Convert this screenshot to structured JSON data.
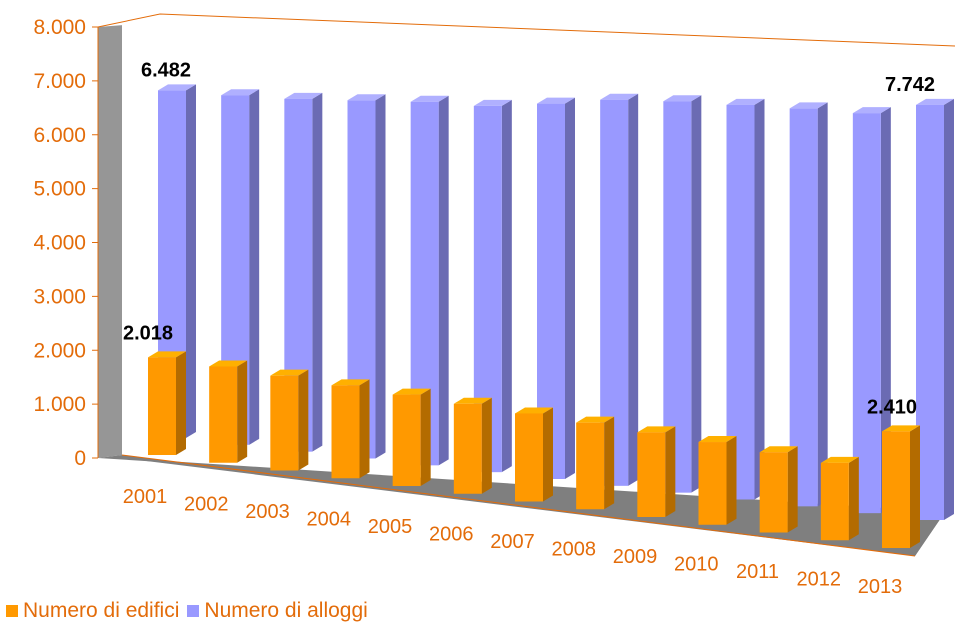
{
  "chart_data": {
    "type": "bar",
    "three_d": true,
    "categories": [
      "2001",
      "2002",
      "2003",
      "2004",
      "2005",
      "2006",
      "2007",
      "2008",
      "2009",
      "2010",
      "2011",
      "2012",
      "2013"
    ],
    "series": [
      {
        "name": "Numero di edifici",
        "color": "#ff9900",
        "values": [
          2018,
          1990,
          1960,
          1920,
          1890,
          1860,
          1820,
          1790,
          1750,
          1710,
          1660,
          1600,
          2410
        ],
        "labels": {
          "0": "2.018",
          "12": "2.410"
        }
      },
      {
        "name": "Numero di alloggi",
        "color": "#9999ff",
        "values": [
          6482,
          6520,
          6580,
          6680,
          6780,
          6830,
          7000,
          7200,
          7300,
          7360,
          7420,
          7460,
          7742
        ],
        "labels": {
          "0": "6.482",
          "12": "7.742"
        }
      }
    ],
    "yticks": [
      "0",
      "1.000",
      "2.000",
      "3.000",
      "4.000",
      "5.000",
      "6.000",
      "7.000",
      "8.000"
    ],
    "ylim": [
      0,
      8000
    ],
    "legend_position": "bottom-left",
    "grid": false,
    "colors": {
      "text": "#e36c0a",
      "wall": "#969696",
      "floor": "#7f7f7f",
      "axis": "#e36c0a"
    }
  }
}
